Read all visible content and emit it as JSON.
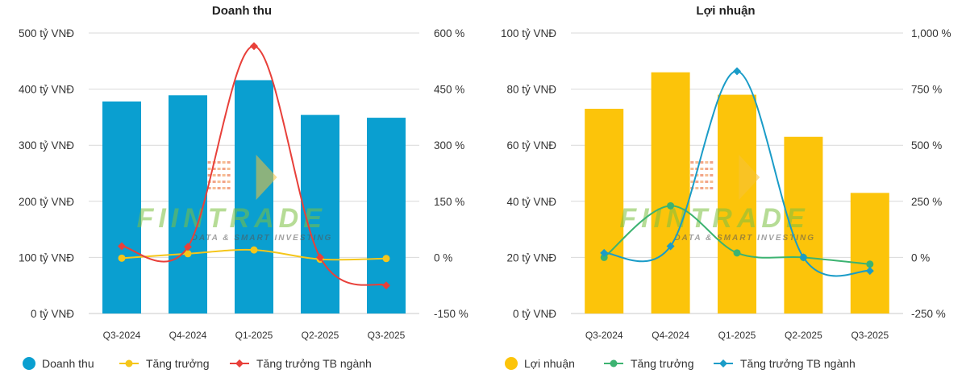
{
  "chart_data": [
    {
      "type": "bar",
      "title": "Doanh thu",
      "categories": [
        "Q3-2024",
        "Q4-2024",
        "Q1-2025",
        "Q2-2025",
        "Q3-2025"
      ],
      "bar_series": {
        "name": "Doanh thu",
        "values": [
          378,
          389,
          416,
          354,
          349
        ],
        "color": "#0a9fd0"
      },
      "line_series": [
        {
          "name": "Tăng trưởng",
          "values": [
            -2,
            10,
            20,
            -5,
            -3
          ],
          "color": "#f5c61a"
        },
        {
          "name": "Tăng trưởng TB ngành",
          "values": [
            30,
            28,
            565,
            0,
            -75
          ],
          "color": "#e8403a"
        }
      ],
      "ylim": [
        0,
        500
      ],
      "y2lim": [
        -150,
        600
      ],
      "yticks": [
        "0 tỷ VNĐ",
        "100 tỷ VNĐ",
        "200 tỷ VNĐ",
        "300 tỷ VNĐ",
        "400 tỷ VNĐ",
        "500 tỷ VNĐ"
      ],
      "y2ticks": [
        "-150 %",
        "0 %",
        "150 %",
        "300 %",
        "450 %",
        "600 %"
      ],
      "legend": [
        "Doanh thu",
        "Tăng trưởng",
        "Tăng trưởng TB ngành"
      ],
      "legend_position": "bottom"
    },
    {
      "type": "bar",
      "title": "Lợi nhuận",
      "categories": [
        "Q3-2024",
        "Q4-2024",
        "Q1-2025",
        "Q2-2025",
        "Q3-2025"
      ],
      "bar_series": {
        "name": "Lợi nhuận",
        "values": [
          73,
          86,
          78,
          63,
          43
        ],
        "color": "#fcc40a"
      },
      "line_series": [
        {
          "name": "Tăng trưởng",
          "values": [
            0,
            230,
            20,
            0,
            -30
          ],
          "color": "#3cb371"
        },
        {
          "name": "Tăng trưởng TB ngành",
          "values": [
            20,
            50,
            830,
            0,
            -60
          ],
          "color": "#1a9cc8"
        }
      ],
      "ylim": [
        0,
        100
      ],
      "y2lim": [
        -250,
        1000
      ],
      "yticks": [
        "0 tỷ VNĐ",
        "20 tỷ VNĐ",
        "40 tỷ VNĐ",
        "60 tỷ VNĐ",
        "80 tỷ VNĐ",
        "100 tỷ VNĐ"
      ],
      "y2ticks": [
        "-250 %",
        "0 %",
        "250 %",
        "500 %",
        "750 %",
        "1,000 %"
      ],
      "legend": [
        "Lợi nhuận",
        "Tăng trưởng",
        "Tăng trưởng TB ngành"
      ],
      "legend_position": "bottom"
    }
  ],
  "watermark": {
    "brand": "FIINTRADE",
    "tagline": "DATA & SMART INVESTING"
  }
}
